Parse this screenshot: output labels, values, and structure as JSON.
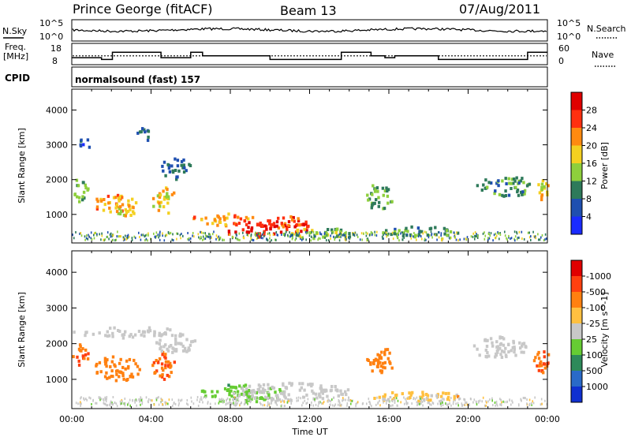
{
  "header": {
    "station": "Prince George (fitACF)",
    "beam": "Beam 13",
    "date": "07/Aug/2011"
  },
  "noise_panel": {
    "left_label": "N.Sky",
    "left_ticks": [
      "10^5",
      "10^0"
    ],
    "right_label": "N.Search",
    "right_ticks": [
      "10^5",
      "10^0"
    ]
  },
  "freq_panel": {
    "left_label_1": "Freq.",
    "left_label_2": "[MHz]",
    "left_ticks": [
      "18",
      "8"
    ],
    "right_label": "Nave",
    "right_ticks": [
      "60",
      "0"
    ],
    "freq_trace": [
      [
        0.0,
        11
      ],
      [
        1.5,
        10
      ],
      [
        2.05,
        14
      ],
      [
        4.3,
        14
      ],
      [
        4.5,
        11
      ],
      [
        6.0,
        14
      ],
      [
        6.6,
        12
      ],
      [
        10.0,
        10
      ],
      [
        13.6,
        14
      ],
      [
        15.1,
        12
      ],
      [
        15.8,
        11
      ],
      [
        16.3,
        12
      ],
      [
        18.5,
        10
      ],
      [
        23.0,
        14
      ]
    ],
    "nave_level": 12
  },
  "cpid": {
    "label": "CPID",
    "program": "normalsound (fast) 157"
  },
  "chart_data": [
    {
      "type": "heatmap",
      "title": "Power",
      "ylabel": "Slant Range [km]",
      "xlim": [
        "00:00",
        "24:00"
      ],
      "ylim": [
        180,
        4600
      ],
      "yticks": [
        "1000",
        "2000",
        "3000",
        "4000"
      ],
      "colorbar_label": "Power [dB]",
      "colorbar_ticks": [
        "4",
        "8",
        "12",
        "16",
        "20",
        "24",
        "28"
      ],
      "colorbar_colors": [
        "#1a2bff",
        "#1f4fb0",
        "#2e7a5a",
        "#8ecf3c",
        "#f4d020",
        "#ff8a10",
        "#ff3010",
        "#e00000"
      ],
      "blobs": [
        {
          "t": 0.4,
          "r": 1700,
          "dt": 0.4,
          "dr": 350,
          "power": 12
        },
        {
          "t": 1.9,
          "r": 1300,
          "dt": 0.8,
          "dr": 300,
          "power": 22
        },
        {
          "t": 2.7,
          "r": 1200,
          "dt": 0.6,
          "dr": 300,
          "power": 18
        },
        {
          "t": 4.6,
          "r": 1400,
          "dt": 0.6,
          "dr": 400,
          "power": 18
        },
        {
          "t": 5.2,
          "r": 2300,
          "dt": 0.8,
          "dr": 300,
          "power": 8
        },
        {
          "t": 7.6,
          "r": 850,
          "dt": 1.6,
          "dr": 180,
          "power": 22
        },
        {
          "t": 9.0,
          "r": 550,
          "dt": 1.4,
          "dr": 220,
          "power": 28
        },
        {
          "t": 10.8,
          "r": 700,
          "dt": 1.4,
          "dr": 240,
          "power": 26
        },
        {
          "t": 12.5,
          "r": 450,
          "dt": 2.0,
          "dr": 150,
          "power": 14
        },
        {
          "t": 15.5,
          "r": 1500,
          "dt": 0.7,
          "dr": 400,
          "power": 12
        },
        {
          "t": 17.5,
          "r": 500,
          "dt": 2.0,
          "dr": 150,
          "power": 10
        },
        {
          "t": 21.8,
          "r": 1800,
          "dt": 1.4,
          "dr": 300,
          "power": 10
        },
        {
          "t": 23.7,
          "r": 1700,
          "dt": 0.4,
          "dr": 300,
          "power": 18
        },
        {
          "t": 3.6,
          "r": 3300,
          "dt": 0.4,
          "dr": 200,
          "power": 8
        },
        {
          "t": 0.6,
          "r": 3000,
          "dt": 0.3,
          "dr": 200,
          "power": 6
        }
      ]
    },
    {
      "type": "heatmap",
      "title": "Velocity",
      "ylabel": "Slant Range [km]",
      "xlabel": "Time UT",
      "xlim": [
        "00:00",
        "24:00"
      ],
      "xticks": [
        "00:00",
        "04:00",
        "08:00",
        "12:00",
        "16:00",
        "20:00",
        "00:00"
      ],
      "ylim": [
        180,
        4600
      ],
      "yticks": [
        "1000",
        "2000",
        "3000",
        "4000"
      ],
      "colorbar_label": "Velocity [m s^-1]",
      "colorbar_ticks": [
        "1000",
        "500",
        "100",
        "25",
        "-25",
        "-100",
        "-500",
        "-1000"
      ],
      "colorbar_colors": [
        "#1030d0",
        "#2a6ac8",
        "#2e8a5a",
        "#66cc33",
        "#c8c8c8",
        "#ffc040",
        "#ff8010",
        "#ff4010",
        "#e00000"
      ],
      "blobs": [
        {
          "t": 0.4,
          "r": 1700,
          "dt": 0.4,
          "dr": 350,
          "vel": -500
        },
        {
          "t": 2.3,
          "r": 1300,
          "dt": 1.2,
          "dr": 350,
          "vel": -300
        },
        {
          "t": 4.6,
          "r": 1400,
          "dt": 0.6,
          "dr": 400,
          "vel": -500
        },
        {
          "t": 3.0,
          "r": 2300,
          "dt": 3.0,
          "dr": 150,
          "vel": 0
        },
        {
          "t": 5.2,
          "r": 2000,
          "dt": 1.0,
          "dr": 300,
          "vel": 0
        },
        {
          "t": 8.5,
          "r": 600,
          "dt": 2.2,
          "dr": 250,
          "vel": 60
        },
        {
          "t": 11.0,
          "r": 650,
          "dt": 3.0,
          "dr": 250,
          "vel": 0
        },
        {
          "t": 15.5,
          "r": 1500,
          "dt": 0.7,
          "dr": 400,
          "vel": -200
        },
        {
          "t": 17.5,
          "r": 500,
          "dt": 2.5,
          "dr": 150,
          "vel": -60
        },
        {
          "t": 21.5,
          "r": 1900,
          "dt": 1.5,
          "dr": 300,
          "vel": 0
        },
        {
          "t": 23.6,
          "r": 1500,
          "dt": 0.5,
          "dr": 350,
          "vel": -500
        }
      ]
    }
  ]
}
